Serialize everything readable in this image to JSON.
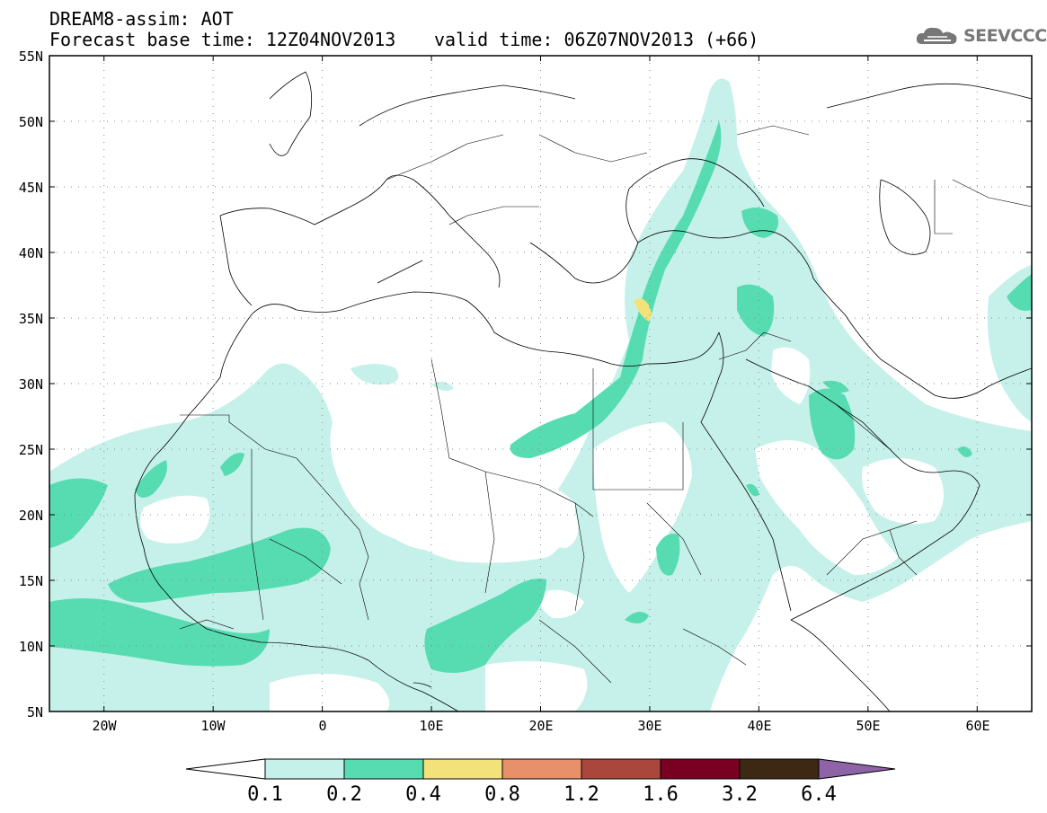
{
  "header": {
    "line1": "DREAM8-assim: AOT",
    "base_time": "Forecast base time: 12Z04NOV2013",
    "valid_time": "valid time: 06Z07NOV2013 (+66)"
  },
  "logo": {
    "icon": "cloud-icon",
    "text": "SEEVCCC"
  },
  "map": {
    "lat_labels": [
      "55N",
      "50N",
      "45N",
      "40N",
      "35N",
      "30N",
      "25N",
      "20N",
      "15N",
      "10N",
      "5N"
    ],
    "lon_labels": [
      "20W",
      "10W",
      "0",
      "10E",
      "20E",
      "30E",
      "40E",
      "50E",
      "60E"
    ],
    "grid": true
  },
  "colorbar": {
    "labels": [
      "0.1",
      "0.2",
      "0.4",
      "0.8",
      "1.2",
      "1.6",
      "3.2",
      "6.4"
    ],
    "colors": [
      "#ffffff",
      "#c6f1ea",
      "#57dcb2",
      "#f3e27a",
      "#e8906a",
      "#a9473d",
      "#7a0022",
      "#3d2813",
      "#8f63a8"
    ]
  }
}
